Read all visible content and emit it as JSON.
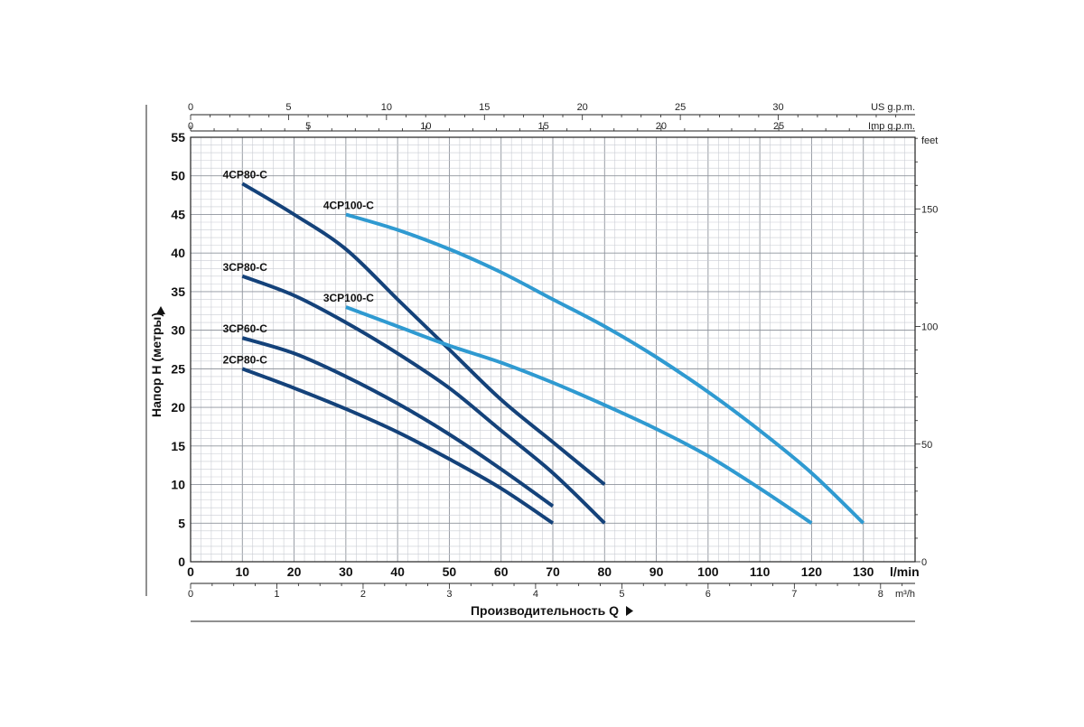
{
  "chart_data": {
    "type": "line",
    "xlabel": "Производительность Q",
    "ylabel": "Напор H (метры)",
    "x_unit": "l/min",
    "y_unit": "m",
    "xlim": [
      0,
      140
    ],
    "ylim": [
      0,
      55
    ],
    "x_ticks": [
      0,
      10,
      20,
      30,
      40,
      50,
      60,
      70,
      80,
      90,
      100,
      110,
      120,
      130
    ],
    "y_ticks": [
      0,
      5,
      10,
      15,
      20,
      25,
      30,
      35,
      40,
      45,
      50,
      55
    ],
    "grid": true,
    "secondary_axes": {
      "top_us": {
        "unit": "US g.p.m.",
        "ticks": [
          0,
          5,
          10,
          15,
          20,
          25,
          30
        ]
      },
      "top_imp": {
        "unit": "Imp g.p.m.",
        "ticks": [
          0,
          5,
          10,
          15,
          20,
          25
        ]
      },
      "bottom_m3h": {
        "unit": "m³/h",
        "ticks": [
          0,
          1,
          2,
          3,
          4,
          5,
          6,
          7,
          8
        ]
      },
      "right_feet": {
        "unit": "feet",
        "ticks": [
          0,
          50,
          100,
          150
        ]
      }
    },
    "series": [
      {
        "name": "4CP80-C",
        "color": "#14427a",
        "x": [
          10,
          20,
          30,
          40,
          50,
          60,
          70,
          80
        ],
        "y": [
          49,
          45,
          40.5,
          34,
          27.5,
          21,
          15.5,
          10
        ]
      },
      {
        "name": "3CP80-C",
        "color": "#14427a",
        "x": [
          10,
          20,
          30,
          40,
          50,
          60,
          70,
          80
        ],
        "y": [
          37,
          34.5,
          31,
          27,
          22.5,
          17,
          11.5,
          5
        ]
      },
      {
        "name": "3CP60-C",
        "color": "#14427a",
        "x": [
          10,
          20,
          30,
          40,
          50,
          60,
          70
        ],
        "y": [
          29,
          27,
          24,
          20.5,
          16.5,
          12,
          7.2
        ]
      },
      {
        "name": "2CP80-C",
        "color": "#14427a",
        "x": [
          10,
          20,
          30,
          40,
          50,
          60,
          70
        ],
        "y": [
          25,
          22.5,
          19.8,
          16.8,
          13.3,
          9.5,
          5
        ]
      },
      {
        "name": "4CP100-C",
        "color": "#2f9ad1",
        "x": [
          30,
          40,
          50,
          60,
          70,
          80,
          90,
          100,
          110,
          120,
          130
        ],
        "y": [
          45,
          43,
          40.5,
          37.5,
          34,
          30.5,
          26.5,
          22,
          17,
          11.5,
          5
        ]
      },
      {
        "name": "3CP100-C",
        "color": "#2f9ad1",
        "x": [
          30,
          40,
          50,
          60,
          70,
          80,
          90,
          100,
          110,
          120
        ],
        "y": [
          33,
          30.5,
          28,
          25.8,
          23.2,
          20.3,
          17.2,
          13.7,
          9.5,
          5
        ]
      }
    ]
  }
}
